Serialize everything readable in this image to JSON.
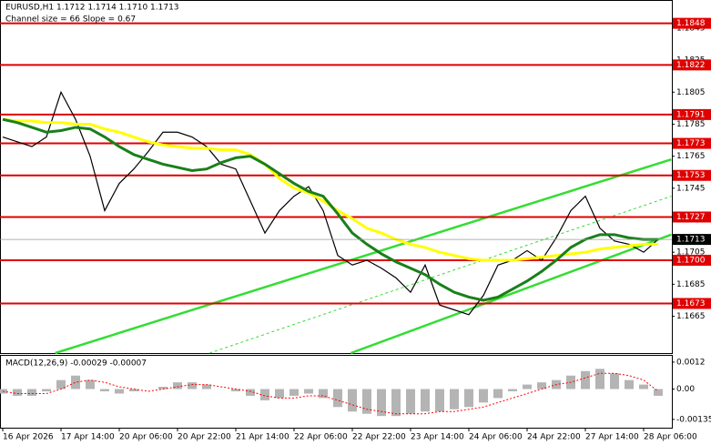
{
  "chart_data": [
    {
      "type": "line",
      "title": "EURUSD,H1 1.1712 1.1714 1.1710 1.1713",
      "subtitle": "Channel size = 66 Slope = 0.67",
      "categories": [
        "16 Apr 2026",
        null,
        null,
        null,
        "17 Apr 14:00",
        null,
        null,
        null,
        "20 Apr 06:00",
        null,
        null,
        null,
        "20 Apr 22:00",
        null,
        null,
        null,
        "21 Apr 14:00",
        null,
        null,
        null,
        "22 Apr 06:00",
        null,
        null,
        null,
        "22 Apr 22:00",
        null,
        null,
        null,
        "23 Apr 14:00",
        null,
        null,
        null,
        "24 Apr 06:00",
        null,
        null,
        null,
        "24 Apr 22:00",
        null,
        null,
        null,
        "27 Apr 14:00",
        null,
        null,
        null,
        "28 Apr 06:00",
        null
      ],
      "series": [
        {
          "color": "#000000",
          "values": [
            1.1777,
            1.1774,
            1.1771,
            1.1777,
            1.1805,
            1.1788,
            1.1765,
            1.1731,
            1.1748,
            1.1757,
            1.1768,
            1.178,
            1.178,
            1.1777,
            1.1771,
            1.176,
            1.1757,
            1.1737,
            1.1717,
            1.1731,
            1.174,
            1.1746,
            1.1731,
            1.1703,
            1.1697,
            1.17,
            1.1695,
            1.1689,
            1.168,
            1.1697,
            1.1672,
            1.1669,
            1.1666,
            1.1678,
            1.1697,
            1.17,
            1.1706,
            1.17,
            1.1714,
            1.1731,
            1.174,
            1.172,
            1.1712,
            1.171,
            1.1705,
            1.1713
          ]
        },
        {
          "color": "#ffff00",
          "values": [
            1.1788,
            1.1787,
            1.1787,
            1.1786,
            1.1786,
            1.1785,
            1.1785,
            1.1782,
            1.178,
            1.1777,
            1.1774,
            1.1772,
            1.1771,
            1.177,
            1.177,
            1.1769,
            1.1769,
            1.1766,
            1.176,
            1.1751,
            1.1745,
            1.1742,
            1.1737,
            1.1731,
            1.1726,
            1.172,
            1.1717,
            1.1713,
            1.171,
            1.1708,
            1.1705,
            1.1703,
            1.1701,
            1.17,
            1.17,
            1.17,
            1.1701,
            1.1702,
            1.1703,
            1.1704,
            1.1705,
            1.1707,
            1.1708,
            1.1709,
            1.171,
            1.171
          ]
        },
        {
          "color": "#1a7f1a",
          "values": [
            1.1788,
            1.1786,
            1.1783,
            1.178,
            1.1781,
            1.1783,
            1.1782,
            1.1777,
            1.1771,
            1.1766,
            1.1763,
            1.176,
            1.1758,
            1.1756,
            1.1757,
            1.1761,
            1.1764,
            1.1765,
            1.176,
            1.1754,
            1.1748,
            1.1743,
            1.174,
            1.1729,
            1.1717,
            1.171,
            1.1704,
            1.1699,
            1.1695,
            1.1691,
            1.1685,
            1.168,
            1.1677,
            1.1675,
            1.1677,
            1.1682,
            1.1687,
            1.1693,
            1.17,
            1.1708,
            1.1713,
            1.1716,
            1.1716,
            1.1714,
            1.1713,
            1.1713
          ]
        }
      ],
      "ylim": [
        1.1642,
        1.1862
      ],
      "yticks": [
        1.1845,
        1.1825,
        1.1805,
        1.1785,
        1.1765,
        1.1745,
        1.1725,
        1.1705,
        1.1685,
        1.1665
      ],
      "levels": [
        1.1848,
        1.1822,
        1.1791,
        1.1773,
        1.1753,
        1.1727,
        {
          "value": 1.17,
          "label": "1.1700"
        },
        1.1673
      ],
      "level_color": "#e00000",
      "current": 1.1713,
      "channels": [
        {
          "x": [
            3.6,
            45.9
          ],
          "y": [
            1.1642,
            1.1763
          ],
          "color": "#33dd33",
          "dashed": false
        },
        {
          "x": [
            23.9,
            45.9
          ],
          "y": [
            1.1642,
            1.1716
          ],
          "color": "#33dd33",
          "dashed": false
        },
        {
          "x": [
            14.2,
            45.9
          ],
          "y": [
            1.1642,
            1.174
          ],
          "color": "#33dd33",
          "dashed": true
        }
      ]
    },
    {
      "type": "bar",
      "title": "MACD(12,26,9) -0.00029 -0.00007",
      "color": "#b4b4b4",
      "values": [
        -0.0002,
        -0.0003,
        -0.0003,
        -0.0001,
        0.0004,
        0.0006,
        0.0004,
        -0.0001,
        -0.0002,
        -0.0001,
        0,
        0.0001,
        0.0003,
        0.0003,
        0.0002,
        0,
        -0.0001,
        -0.0003,
        -0.0005,
        -0.0004,
        -0.0003,
        -0.0002,
        -0.0004,
        -0.0008,
        -0.001,
        -0.0011,
        -0.0012,
        -0.0012,
        -0.0011,
        -0.001,
        -0.001,
        -0.0009,
        -0.0008,
        -0.0006,
        -0.0004,
        -0.0001,
        0.0002,
        0.0003,
        0.0004,
        0.0006,
        0.0008,
        0.0009,
        0.0007,
        0.0004,
        0.0002,
        -0.0003
      ],
      "signal": {
        "color": "#ff0000",
        "values": [
          -0.0001,
          -0.0002,
          -0.0002,
          -0.0002,
          0,
          0.0003,
          0.0004,
          0.0003,
          0.0001,
          0,
          -0.0001,
          0,
          0.0001,
          0.0002,
          0.0002,
          0.0001,
          0,
          -0.0001,
          -0.0003,
          -0.0004,
          -0.0004,
          -0.0003,
          -0.0003,
          -0.0005,
          -0.0007,
          -0.0009,
          -0.001,
          -0.0011,
          -0.0011,
          -0.0011,
          -0.001,
          -0.001,
          -0.0009,
          -0.0008,
          -0.0006,
          -0.0004,
          -0.0002,
          0,
          0.0002,
          0.0003,
          0.0005,
          0.0007,
          0.0007,
          0.0006,
          0.0004,
          -0.0001
        ]
      },
      "ylim": [
        -0.00172,
        0.00148
      ],
      "yticks": [
        0.0012,
        {
          "value": 0,
          "label": "0.00"
        },
        -0.00135
      ]
    }
  ]
}
